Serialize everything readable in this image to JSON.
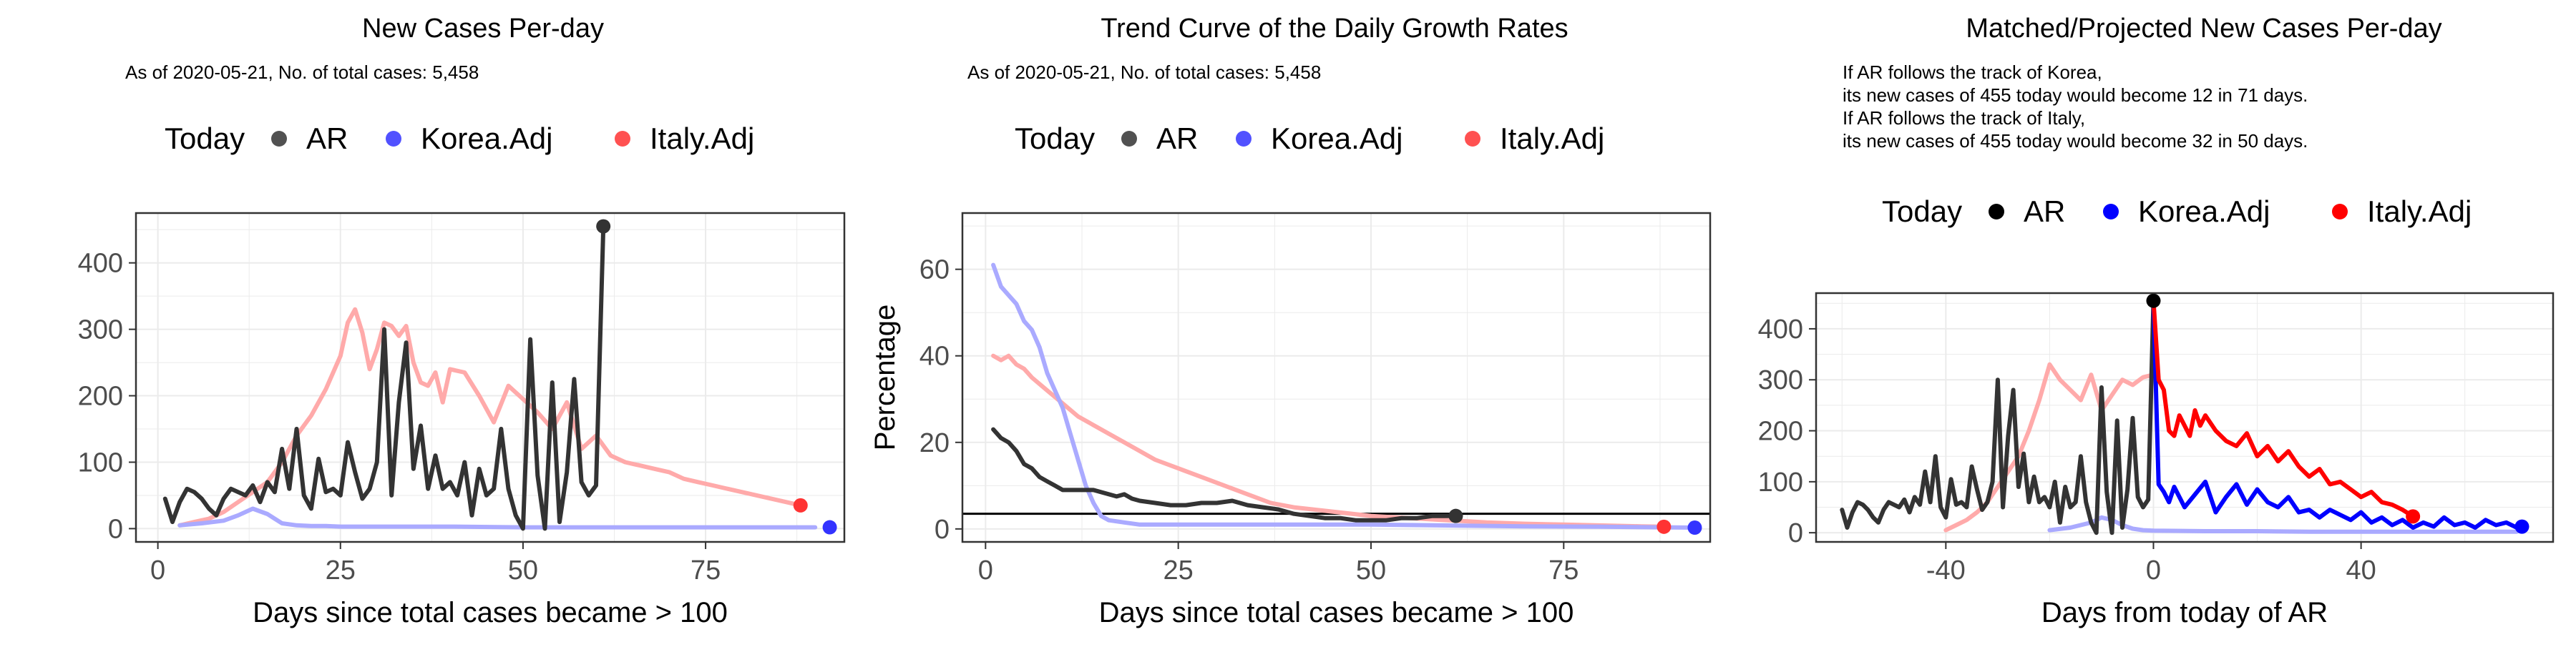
{
  "panels": [
    {
      "title": "New Cases Per-day",
      "subtitle_lines": [
        "As of 2020-05-21, No. of total cases: 5,458"
      ],
      "legend": {
        "title": "Today",
        "items": [
          {
            "label": "AR",
            "color": "#333333"
          },
          {
            "label": "Korea.Adj",
            "color": "#3333ff"
          },
          {
            "label": "Italy.Adj",
            "color": "#ff3333"
          }
        ]
      }
    },
    {
      "title": "Trend Curve of the Daily Growth Rates",
      "subtitle_lines": [
        "As of 2020-05-21, No. of total cases: 5,458"
      ],
      "legend": {
        "title": "Today",
        "items": [
          {
            "label": "AR",
            "color": "#333333"
          },
          {
            "label": "Korea.Adj",
            "color": "#3333ff"
          },
          {
            "label": "Italy.Adj",
            "color": "#ff3333"
          }
        ]
      }
    },
    {
      "title": "Matched/Projected New Cases Per-day",
      "subtitle_lines": [
        "If AR follows the track of Korea,",
        "its new cases of 455 today would become 12 in 71 days.",
        "If AR follows the track of Italy,",
        "its new cases of 455 today would become 32 in 50 days."
      ],
      "legend": {
        "title": "Today",
        "items": [
          {
            "label": "AR",
            "color": "#000000"
          },
          {
            "label": "Korea.Adj",
            "color": "#0000ff"
          },
          {
            "label": "Italy.Adj",
            "color": "#ff0000"
          }
        ]
      }
    }
  ],
  "chart_data": [
    {
      "type": "line",
      "title": "New Cases Per-day",
      "xlabel": "Days since total cases became > 100",
      "ylabel": "",
      "xlim": [
        -3,
        94
      ],
      "ylim": [
        -20,
        475
      ],
      "xticks": [
        0,
        25,
        50,
        75
      ],
      "yticks": [
        0,
        100,
        200,
        300,
        400
      ],
      "grid": true,
      "series": [
        {
          "name": "Italy.Adj",
          "color": "#ffaaaa",
          "x": [
            3,
            5,
            7,
            9,
            11,
            13,
            15,
            17,
            19,
            21,
            23,
            25,
            26,
            27,
            28,
            29,
            30,
            31,
            32,
            33,
            34,
            35,
            36,
            37,
            38,
            39,
            40,
            42,
            44,
            46,
            48,
            50,
            52,
            54,
            56,
            58,
            60,
            62,
            64,
            66,
            68,
            70,
            72,
            74,
            76,
            78,
            80,
            82,
            84,
            86,
            88
          ],
          "y": [
            5,
            10,
            15,
            25,
            40,
            55,
            70,
            100,
            140,
            170,
            210,
            260,
            310,
            330,
            295,
            240,
            270,
            310,
            305,
            290,
            305,
            250,
            220,
            215,
            235,
            190,
            240,
            235,
            200,
            160,
            215,
            195,
            175,
            150,
            190,
            120,
            140,
            110,
            100,
            95,
            90,
            85,
            75,
            70,
            65,
            60,
            55,
            50,
            45,
            40,
            35
          ]
        },
        {
          "name": "Korea.Adj",
          "color": "#aaaaff",
          "x": [
            3,
            6,
            9,
            11,
            13,
            15,
            17,
            19,
            21,
            23,
            25,
            30,
            40,
            50,
            60,
            70,
            80,
            90
          ],
          "y": [
            5,
            8,
            12,
            20,
            30,
            22,
            8,
            5,
            4,
            4,
            3,
            3,
            3,
            2,
            2,
            2,
            2,
            2
          ]
        },
        {
          "name": "AR",
          "color": "#333333",
          "x": [
            1,
            2,
            3,
            4,
            5,
            6,
            7,
            8,
            9,
            10,
            11,
            12,
            13,
            14,
            15,
            16,
            17,
            18,
            19,
            20,
            21,
            22,
            23,
            24,
            25,
            26,
            27,
            28,
            29,
            30,
            31,
            32,
            33,
            34,
            35,
            36,
            37,
            38,
            39,
            40,
            41,
            42,
            43,
            44,
            45,
            46,
            47,
            48,
            49,
            50,
            51,
            52,
            53,
            54,
            55,
            56,
            57,
            58,
            59,
            60,
            61
          ],
          "y": [
            45,
            10,
            40,
            60,
            55,
            45,
            30,
            20,
            45,
            60,
            55,
            50,
            65,
            40,
            70,
            55,
            120,
            60,
            150,
            50,
            30,
            105,
            55,
            60,
            50,
            130,
            85,
            45,
            60,
            100,
            300,
            50,
            190,
            280,
            90,
            155,
            60,
            110,
            60,
            70,
            50,
            100,
            20,
            90,
            50,
            60,
            150,
            60,
            20,
            0,
            285,
            80,
            0,
            220,
            10,
            85,
            225,
            70,
            50,
            65,
            455
          ]
        }
      ],
      "today_points": [
        {
          "name": "AR",
          "x": 61,
          "y": 455,
          "color": "#333333"
        },
        {
          "name": "Italy.Adj",
          "x": 88,
          "y": 35,
          "color": "#ff3333"
        },
        {
          "name": "Korea.Adj",
          "x": 92,
          "y": 2,
          "color": "#3333ff"
        }
      ]
    },
    {
      "type": "line",
      "title": "Trend Curve of the Daily Growth Rates",
      "xlabel": "Days since total cases became > 100",
      "ylabel": "Percentage",
      "xlim": [
        -3,
        94
      ],
      "ylim": [
        -3,
        73
      ],
      "xticks": [
        0,
        25,
        50,
        75
      ],
      "yticks": [
        0,
        20,
        40,
        60
      ],
      "grid": true,
      "hline": 3.5,
      "series": [
        {
          "name": "Italy.Adj",
          "color": "#ffaaaa",
          "x": [
            1,
            2,
            3,
            4,
            5,
            6,
            8,
            10,
            12,
            14,
            16,
            18,
            20,
            22,
            25,
            28,
            31,
            34,
            37,
            40,
            45,
            50,
            55,
            60,
            65,
            70,
            75,
            80,
            85,
            88
          ],
          "y": [
            40,
            39,
            40,
            38,
            37,
            35,
            32,
            29,
            26,
            24,
            22,
            20,
            18,
            16,
            14,
            12,
            10,
            8,
            6,
            5,
            4,
            3,
            2.5,
            2,
            1.5,
            1.2,
            1,
            0.8,
            0.6,
            0.5
          ]
        },
        {
          "name": "Korea.Adj",
          "color": "#aaaaff",
          "x": [
            1,
            2,
            3,
            4,
            5,
            6,
            7,
            8,
            9,
            10,
            11,
            12,
            13,
            14,
            15,
            16,
            18,
            20,
            25,
            30,
            40,
            50,
            60,
            70,
            80,
            92
          ],
          "y": [
            61,
            56,
            54,
            52,
            48,
            46,
            42,
            36,
            32,
            28,
            22,
            16,
            10,
            6,
            3,
            2,
            1.5,
            1,
            1,
            1,
            1,
            1,
            0.8,
            0.6,
            0.5,
            0.3
          ]
        },
        {
          "name": "AR",
          "color": "#333333",
          "x": [
            1,
            2,
            3,
            4,
            5,
            6,
            7,
            8,
            9,
            10,
            11,
            12,
            13,
            14,
            15,
            16,
            17,
            18,
            19,
            20,
            22,
            24,
            26,
            28,
            30,
            32,
            34,
            36,
            38,
            40,
            42,
            44,
            46,
            48,
            50,
            52,
            54,
            56,
            58,
            60,
            61
          ],
          "y": [
            23,
            21,
            20,
            18,
            15,
            14,
            12,
            11,
            10,
            9,
            9,
            9,
            9,
            9,
            8.5,
            8,
            7.5,
            8,
            7,
            6.5,
            6,
            5.5,
            5.5,
            6,
            6,
            6.5,
            5.5,
            5,
            4.5,
            3.5,
            3,
            2.5,
            2.5,
            2,
            2,
            2,
            2.5,
            2.5,
            3,
            3,
            3
          ]
        }
      ],
      "today_points": [
        {
          "name": "AR",
          "x": 61,
          "y": 3,
          "color": "#333333"
        },
        {
          "name": "Italy.Adj",
          "x": 88,
          "y": 0.5,
          "color": "#ff3333"
        },
        {
          "name": "Korea.Adj",
          "x": 92,
          "y": 0.3,
          "color": "#3333ff"
        }
      ]
    },
    {
      "type": "line",
      "title": "Matched/Projected New Cases Per-day",
      "xlabel": "Days from today of AR",
      "ylabel": "",
      "xlim": [
        -65,
        77
      ],
      "ylim": [
        -18,
        470
      ],
      "xticks": [
        -40,
        0,
        40
      ],
      "yticks": [
        0,
        100,
        200,
        300,
        400
      ],
      "grid": true,
      "series": [
        {
          "name": "Italy.Adj",
          "color": "#ffaaaa",
          "x": [
            -40,
            -38,
            -36,
            -34,
            -32,
            -30,
            -28,
            -26,
            -24,
            -22,
            -20,
            -18,
            -16,
            -14,
            -12,
            -10,
            -8,
            -6,
            -4,
            -2,
            0
          ],
          "y": [
            5,
            15,
            25,
            40,
            60,
            90,
            120,
            150,
            200,
            260,
            330,
            300,
            280,
            260,
            310,
            240,
            270,
            300,
            290,
            305,
            310
          ]
        },
        {
          "name": "Korea.Adj",
          "color": "#aaaaff",
          "x": [
            -20,
            -16,
            -12,
            -10,
            -8,
            -6,
            -4,
            -2,
            0,
            10,
            20,
            30,
            40,
            50,
            60,
            70
          ],
          "y": [
            5,
            10,
            20,
            30,
            25,
            15,
            8,
            5,
            4,
            3,
            3,
            2,
            2,
            2,
            2,
            2
          ]
        },
        {
          "name": "AR",
          "color": "#333333",
          "x": [
            -60,
            -59,
            -58,
            -57,
            -56,
            -55,
            -54,
            -53,
            -52,
            -51,
            -50,
            -49,
            -48,
            -47,
            -46,
            -45,
            -44,
            -43,
            -42,
            -41,
            -40,
            -39,
            -38,
            -37,
            -36,
            -35,
            -34,
            -33,
            -32,
            -31,
            -30,
            -29,
            -28,
            -27,
            -26,
            -25,
            -24,
            -23,
            -22,
            -21,
            -20,
            -19,
            -18,
            -17,
            -16,
            -15,
            -14,
            -13,
            -12,
            -11,
            -10,
            -9,
            -8,
            -7,
            -6,
            -5,
            -4,
            -3,
            -2,
            -1,
            0
          ],
          "y": [
            45,
            10,
            40,
            60,
            55,
            45,
            30,
            20,
            45,
            60,
            55,
            50,
            65,
            40,
            70,
            55,
            120,
            60,
            150,
            50,
            30,
            105,
            55,
            60,
            50,
            130,
            85,
            45,
            60,
            100,
            300,
            50,
            190,
            280,
            90,
            155,
            60,
            110,
            60,
            70,
            50,
            100,
            20,
            90,
            50,
            60,
            150,
            60,
            20,
            0,
            285,
            80,
            0,
            220,
            10,
            85,
            225,
            70,
            50,
            65,
            455
          ]
        },
        {
          "name": "Korea.Adj (projected)",
          "color": "#0000ff",
          "x": [
            0,
            1,
            2,
            3,
            4,
            6,
            8,
            10,
            12,
            14,
            16,
            18,
            20,
            22,
            24,
            26,
            28,
            30,
            32,
            34,
            36,
            38,
            40,
            42,
            44,
            46,
            48,
            50,
            52,
            54,
            56,
            58,
            60,
            62,
            64,
            66,
            68,
            70,
            71
          ],
          "y": [
            455,
            95,
            80,
            60,
            90,
            50,
            75,
            100,
            40,
            70,
            95,
            55,
            85,
            60,
            50,
            70,
            40,
            45,
            30,
            45,
            35,
            25,
            40,
            20,
            30,
            15,
            25,
            10,
            20,
            12,
            30,
            15,
            20,
            10,
            25,
            15,
            20,
            10,
            12
          ]
        },
        {
          "name": "Italy.Adj (projected)",
          "color": "#ff0000",
          "x": [
            0,
            1,
            2,
            3,
            4,
            5,
            6,
            7,
            8,
            9,
            10,
            12,
            14,
            16,
            18,
            20,
            22,
            24,
            26,
            28,
            30,
            32,
            34,
            36,
            38,
            40,
            42,
            44,
            46,
            48,
            50
          ],
          "y": [
            455,
            300,
            280,
            200,
            190,
            230,
            210,
            190,
            240,
            210,
            230,
            200,
            180,
            170,
            195,
            150,
            170,
            140,
            160,
            130,
            110,
            125,
            95,
            100,
            85,
            70,
            80,
            60,
            55,
            45,
            32
          ]
        }
      ],
      "today_points": [
        {
          "name": "AR",
          "x": 0,
          "y": 455,
          "color": "#000000"
        },
        {
          "name": "Italy.Adj",
          "x": 50,
          "y": 32,
          "color": "#ff0000"
        },
        {
          "name": "Korea.Adj",
          "x": 71,
          "y": 12,
          "color": "#0000ff"
        }
      ]
    }
  ]
}
